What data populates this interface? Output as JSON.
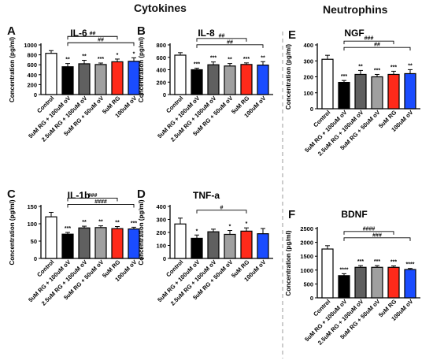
{
  "headings": {
    "left": "Cytokines",
    "right": "Neutrophins"
  },
  "colors": {
    "control": "#ffffff",
    "rg100_ov100": "#000000",
    "rg25_ov100": "#606060",
    "rg5_ov50": "#a0a0a0",
    "rg5": "#ff2a1a",
    "ov100": "#1a4cff"
  },
  "chart_data": [
    {
      "type": "bar",
      "panel": "A",
      "title": "IL-6",
      "ylabel": "Concentration (pg/ml)",
      "ylim": [
        0,
        1000
      ],
      "yticks": [
        0,
        200,
        400,
        600,
        800,
        1000
      ],
      "categories": [
        "Control",
        "5uM RG + 100uM oV",
        "2.5uM RG + 100uM oV",
        "5uM RG + 50uM oV",
        "5uM RG",
        "100uM oV"
      ],
      "values": [
        830,
        560,
        620,
        605,
        660,
        670
      ],
      "errors": [
        55,
        65,
        70,
        30,
        55,
        70
      ],
      "stars": [
        "",
        "**",
        "**",
        "***",
        "*",
        "*"
      ],
      "brackets": [
        {
          "from": 1,
          "to": 5,
          "label": "##"
        },
        {
          "from": 1,
          "to": 4,
          "label": "##"
        }
      ]
    },
    {
      "type": "bar",
      "panel": "B",
      "title": "IL-8",
      "ylabel": "Concentration (pg/ml)",
      "ylim": [
        0,
        800
      ],
      "yticks": [
        0,
        200,
        400,
        600,
        800
      ],
      "categories": [
        "Control",
        "5uM RG + 100uM oV",
        "2.5uM RG + 100uM oV",
        "5uM RG + 50uM oV",
        "5uM RG",
        "100uM oV"
      ],
      "values": [
        635,
        400,
        480,
        460,
        485,
        475
      ],
      "errors": [
        40,
        25,
        45,
        40,
        25,
        55
      ],
      "stars": [
        "",
        "***",
        "***",
        "**",
        "***",
        "**"
      ],
      "brackets": [
        {
          "from": 1,
          "to": 5,
          "label": "##"
        },
        {
          "from": 1,
          "to": 4,
          "label": "##"
        }
      ]
    },
    {
      "type": "bar",
      "panel": "E",
      "title": "NGF",
      "ylabel": "Concentration (pg/ml)",
      "ylim": [
        0,
        400
      ],
      "yticks": [
        0,
        100,
        200,
        300,
        400
      ],
      "categories": [
        "Control",
        "5uM RG + 100uM oV",
        "2.5uM RG + 100uM oV",
        "5uM RG + 50uM oV",
        "5uM RG",
        "100uM oV"
      ],
      "values": [
        310,
        165,
        215,
        200,
        215,
        220
      ],
      "errors": [
        25,
        12,
        25,
        15,
        20,
        25
      ],
      "stars": [
        "",
        "***",
        "**",
        "***",
        "***",
        "**"
      ],
      "brackets": [
        {
          "from": 1,
          "to": 5,
          "label": "##"
        },
        {
          "from": 1,
          "to": 4,
          "label": "###"
        }
      ]
    },
    {
      "type": "bar",
      "panel": "C",
      "title": "IL-1b",
      "ylabel": "Concentration (pg/ml)",
      "ylim": [
        0,
        150
      ],
      "yticks": [
        0,
        50,
        100,
        150
      ],
      "categories": [
        "Control",
        "5uM RG + 100uM oV",
        "2.5uM RG + 100uM oV",
        "5uM RG + 50uM oV",
        "5uM RG",
        "100uM oV"
      ],
      "values": [
        120,
        70,
        88,
        89,
        86,
        85
      ],
      "errors": [
        13,
        5,
        5,
        5,
        6,
        5
      ],
      "stars": [
        "",
        "***",
        "**",
        "**",
        "**",
        "***"
      ],
      "brackets": [
        {
          "from": 1,
          "to": 5,
          "label": "####"
        },
        {
          "from": 1,
          "to": 4,
          "label": "###"
        }
      ]
    },
    {
      "type": "bar",
      "panel": "D",
      "title": "TNF-a",
      "ylabel": "Concentration (pg/ml)",
      "ylim": [
        0,
        400
      ],
      "yticks": [
        0,
        100,
        200,
        300,
        400
      ],
      "categories": [
        "Control",
        "5uM RG + 100uM oV",
        "2.5uM RG + 100uM oV",
        "5uM RG + 50uM oV",
        "5uM RG",
        "100uM oV"
      ],
      "values": [
        265,
        155,
        205,
        185,
        210,
        190
      ],
      "errors": [
        45,
        25,
        20,
        30,
        25,
        40
      ],
      "stars": [
        "",
        "*",
        "",
        "*",
        "*",
        ""
      ],
      "brackets": [
        {
          "from": 1,
          "to": 4,
          "label": "#"
        }
      ]
    },
    {
      "type": "bar",
      "panel": "F",
      "title": "BDNF",
      "ylabel": "Concentration (pg/ml)",
      "ylim": [
        0,
        2500
      ],
      "yticks": [
        0,
        500,
        1000,
        1500,
        2000,
        2500
      ],
      "categories": [
        "Control",
        "5uM RG + 100uM oV",
        "2.5uM RG + 100uM oV",
        "5uM RG + 50uM oV",
        "5uM RG",
        "100uM oV"
      ],
      "values": [
        1760,
        800,
        1100,
        1100,
        1100,
        1020
      ],
      "errors": [
        120,
        70,
        60,
        60,
        50,
        40
      ],
      "stars": [
        "",
        "****",
        "***",
        "***",
        "***",
        "****"
      ],
      "brackets": [
        {
          "from": 1,
          "to": 5,
          "label": "###"
        },
        {
          "from": 1,
          "to": 4,
          "label": "####"
        }
      ]
    }
  ]
}
